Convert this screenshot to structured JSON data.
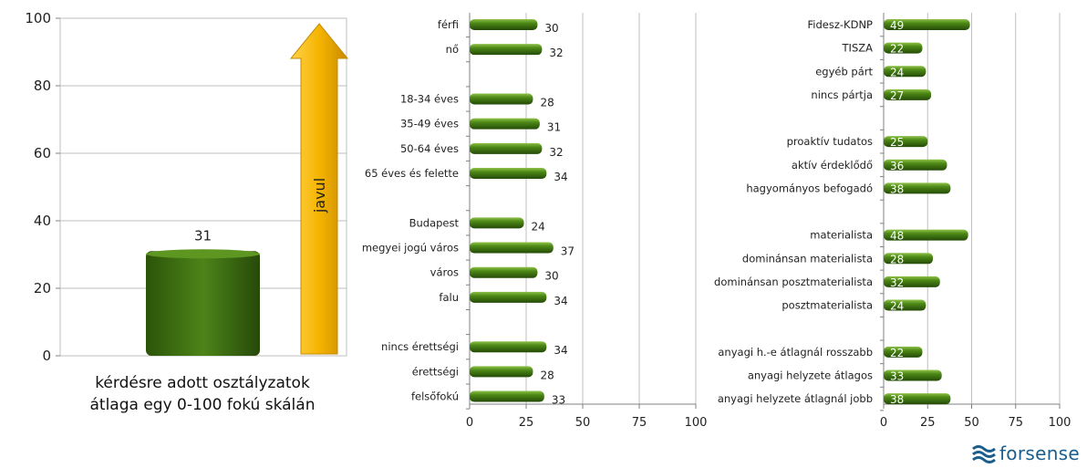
{
  "chart_data": [
    {
      "type": "bar",
      "categories": [
        "kérdésre adott osztályzatok átlaga egy 0-100 fokú skálán"
      ],
      "values": [
        31
      ],
      "ylim": [
        0,
        100
      ],
      "yticks": [
        "0",
        "20",
        "40",
        "60",
        "80",
        "100"
      ],
      "xlabel_lines": [
        "kérdésre adott osztályzatok",
        "átlaga egy 0-100 fokú skálán"
      ],
      "arrow_label": "javul",
      "grid": true,
      "colors": {
        "bar": "#3d6b12",
        "arrow": "#f5b400"
      }
    },
    {
      "type": "bar",
      "orientation": "horizontal",
      "xlim": [
        0,
        100
      ],
      "xticks": [
        "0",
        "25",
        "50",
        "75",
        "100"
      ],
      "grid": true,
      "categories": [
        "férfi",
        "nő",
        "",
        "18-34 éves",
        "35-49 éves",
        "50-64 éves",
        "65 éves és felette",
        "",
        "Budapest",
        "megyei jogú város",
        "város",
        "falu",
        "",
        "nincs érettségi",
        "érettségi",
        "felsőfokú"
      ],
      "values": [
        30,
        32,
        null,
        28,
        31,
        32,
        34,
        null,
        24,
        37,
        30,
        34,
        null,
        34,
        28,
        33
      ],
      "value_labels": [
        "30",
        "32",
        "",
        "28",
        "31",
        "32",
        "34",
        "",
        "24",
        "37",
        "30",
        "34",
        "",
        "34",
        "28",
        "33"
      ]
    },
    {
      "type": "bar",
      "orientation": "horizontal",
      "xlim": [
        0,
        100
      ],
      "xticks": [
        "0",
        "25",
        "50",
        "75",
        "100"
      ],
      "grid": true,
      "categories": [
        "Fidesz-KDNP",
        "TISZA",
        "egyéb párt",
        "nincs pártja",
        "",
        "proaktív tudatos",
        "aktív érdeklődő",
        "hagyományos befogadó",
        "",
        "materialista",
        "dominánsan materialista",
        "dominánsan posztmaterialista",
        "posztmaterialista",
        "",
        "anyagi h.-e átlagnál rosszabb",
        "anyagi helyzete átlagos",
        "anyagi helyzete átlagnál jobb"
      ],
      "values": [
        49,
        22,
        24,
        27,
        null,
        25,
        36,
        38,
        null,
        48,
        28,
        32,
        24,
        null,
        22,
        33,
        38
      ],
      "value_labels": [
        "49",
        "22",
        "24",
        "27",
        "",
        "25",
        "36",
        "38",
        "",
        "48",
        "28",
        "32",
        "24",
        "",
        "22",
        "33",
        "38"
      ]
    }
  ],
  "logo": {
    "text": "forsense",
    "icon": "forsense-waves-icon",
    "color": "#1b5e8c"
  }
}
